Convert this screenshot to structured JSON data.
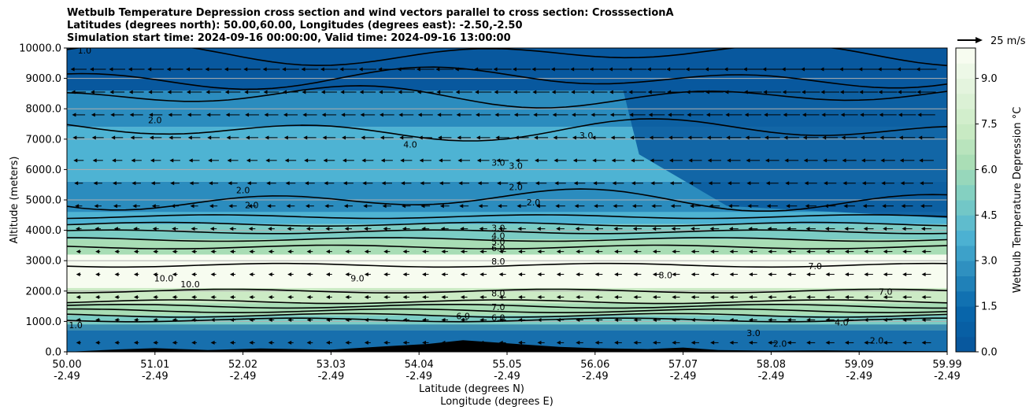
{
  "chart_data": {
    "type": "heatmap",
    "title_lines": [
      "Wetbulb Temperature Depression cross section and wind vectors parallel to cross section: CrosssectionA",
      "Latitudes (degrees north): 50.00,60.00, Longitudes (degrees east): -2.50,-2.50",
      "Simulation start time: 2024-09-16 00:00:00, Valid time: 2024-09-16 13:00:00"
    ],
    "xlabel": [
      "Latitude (degrees N)",
      "Longitude (degrees E)"
    ],
    "ylabel": "Altitude (meters)",
    "colorbar_label": "Wetbulb Temperature Depression °C",
    "quiver_key": "25 m/s",
    "x_ticks": [
      {
        "lat": "50.00",
        "lon": "-2.49"
      },
      {
        "lat": "51.01",
        "lon": "-2.49"
      },
      {
        "lat": "52.02",
        "lon": "-2.49"
      },
      {
        "lat": "53.03",
        "lon": "-2.49"
      },
      {
        "lat": "54.04",
        "lon": "-2.49"
      },
      {
        "lat": "55.05",
        "lon": "-2.49"
      },
      {
        "lat": "56.06",
        "lon": "-2.49"
      },
      {
        "lat": "57.07",
        "lon": "-2.49"
      },
      {
        "lat": "58.08",
        "lon": "-2.49"
      },
      {
        "lat": "59.09",
        "lon": "-2.49"
      },
      {
        "lat": "59.99",
        "lon": "-2.49"
      }
    ],
    "y_ticks": [
      "0.0",
      "1000.0",
      "2000.0",
      "3000.0",
      "4000.0",
      "5000.0",
      "6000.0",
      "7000.0",
      "8000.0",
      "9000.0",
      "10000.0"
    ],
    "ylim": [
      0,
      10000
    ],
    "colorbar_ticks": [
      "0.0",
      "1.5",
      "3.0",
      "4.5",
      "6.0",
      "7.5",
      "9.0"
    ],
    "colorbar_range": [
      0,
      10
    ],
    "grid": "horizontal",
    "colors": {
      "low": "#08589e",
      "mid_low": "#2b8cbe",
      "mid": "#4eb3d3",
      "mid_high": "#7bccc4",
      "high": "#a8ddb5",
      "very_high": "#ccebc5",
      "max": "#f7fcf0",
      "contour": "#000000",
      "terrain": "#000000"
    },
    "contour_labels": [
      {
        "text": "1.0",
        "x": 0.2,
        "y": 9900
      },
      {
        "text": "2.0",
        "x": 1.0,
        "y": 7600
      },
      {
        "text": "2.0",
        "x": 2.0,
        "y": 5300
      },
      {
        "text": "2.0",
        "x": 2.1,
        "y": 4800
      },
      {
        "text": "4.0",
        "x": 3.9,
        "y": 6800
      },
      {
        "text": "3.0",
        "x": 4.9,
        "y": 6200
      },
      {
        "text": "3.0",
        "x": 5.1,
        "y": 6100
      },
      {
        "text": "2.0",
        "x": 5.1,
        "y": 5400
      },
      {
        "text": "2.0",
        "x": 5.3,
        "y": 4900
      },
      {
        "text": "3.0",
        "x": 5.9,
        "y": 7100
      },
      {
        "text": "3.0",
        "x": 4.9,
        "y": 4050
      },
      {
        "text": "4.0",
        "x": 4.9,
        "y": 3800
      },
      {
        "text": "5.0",
        "x": 4.9,
        "y": 3600
      },
      {
        "text": "6.0",
        "x": 4.9,
        "y": 3400
      },
      {
        "text": "8.0",
        "x": 4.9,
        "y": 2950
      },
      {
        "text": "10.0",
        "x": 1.1,
        "y": 2400
      },
      {
        "text": "10.0",
        "x": 1.4,
        "y": 2200
      },
      {
        "text": "9.0",
        "x": 3.3,
        "y": 2400
      },
      {
        "text": "8.0",
        "x": 6.8,
        "y": 2500
      },
      {
        "text": "7.0",
        "x": 8.5,
        "y": 2800
      },
      {
        "text": "7.0",
        "x": 9.3,
        "y": 1950
      },
      {
        "text": "8.0",
        "x": 4.9,
        "y": 1900
      },
      {
        "text": "7.0",
        "x": 4.9,
        "y": 1450
      },
      {
        "text": "6.0",
        "x": 4.5,
        "y": 1150
      },
      {
        "text": "6.0",
        "x": 4.9,
        "y": 1100
      },
      {
        "text": "4.0",
        "x": 8.8,
        "y": 950
      },
      {
        "text": "3.0",
        "x": 7.8,
        "y": 600
      },
      {
        "text": "1.0",
        "x": 0.1,
        "y": 850
      },
      {
        "text": "2.0",
        "x": 8.1,
        "y": 250
      },
      {
        "text": "2.0",
        "x": 9.2,
        "y": 350
      }
    ]
  }
}
